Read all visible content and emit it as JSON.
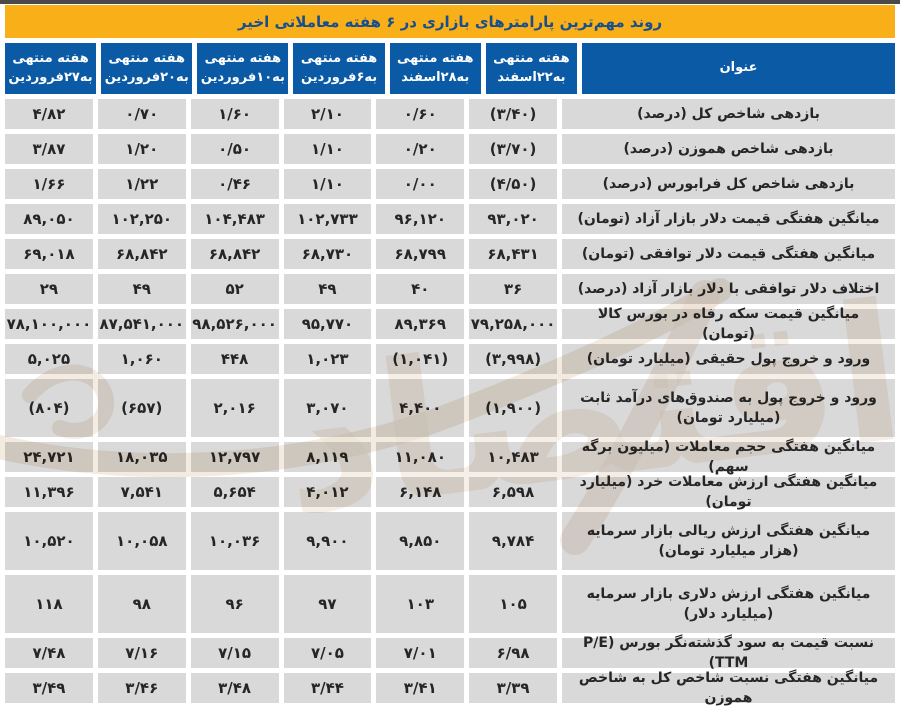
{
  "page_title": "روند مهم‌ترین پارامترهای بازاری در ۶ هفته معاملاتی اخیر",
  "colors": {
    "title_bar_bg": "#F9AF18",
    "title_bar_text": "#174F8E",
    "header_bg": "#0B5AA6",
    "header_text": "#FFFFFF",
    "cell_bg": "#D9D9D9",
    "cell_text": "#262626",
    "top_strip": "#4A4A4A",
    "watermark": "#DCC3A8"
  },
  "watermark": {
    "text": "اقتصاد"
  },
  "chart_data": {
    "type": "table",
    "title": "روند مهم‌ترین پارامترهای بازاری در ۶ هفته معاملاتی اخیر",
    "title_column": "عنوان",
    "layout": "RTL table; label column on the right, week columns ordered oldest-to-newest from right to left",
    "week_columns": [
      {
        "line1": "هفته منتهی",
        "line2": "به۲۲اسفند"
      },
      {
        "line1": "هفته منتهی",
        "line2": "به۲۸اسفند"
      },
      {
        "line1": "هفته منتهی",
        "line2": "به۶فروردین"
      },
      {
        "line1": "هفته منتهی",
        "line2": "به۱۰فروردین"
      },
      {
        "line1": "هفته منتهی",
        "line2": "به۲۰فروردین"
      },
      {
        "line1": "هفته منتهی",
        "line2": "به۲۷فروردین"
      }
    ],
    "rows": [
      {
        "label": "بازدهی شاخص کل (درصد)",
        "tall": false,
        "values": [
          "(۳/۴۰)",
          "۰/۶۰",
          "۲/۱۰",
          "۱/۶۰",
          "۰/۷۰",
          "۴/۸۲"
        ]
      },
      {
        "label": "بازدهی شاخص هموزن (درصد)",
        "tall": false,
        "values": [
          "(۳/۷۰)",
          "۰/۲۰",
          "۱/۱۰",
          "۰/۵۰",
          "۱/۲۰",
          "۳/۸۷"
        ]
      },
      {
        "label": "بازدهی شاخص کل فرابورس (درصد)",
        "tall": false,
        "values": [
          "(۴/۵۰)",
          "۰/۰۰",
          "۱/۱۰",
          "۰/۴۶",
          "۱/۲۲",
          "۱/۶۶"
        ]
      },
      {
        "label": "میانگین هفتگی قیمت دلار بازار آزاد (تومان)",
        "tall": false,
        "values": [
          "۹۳,۰۲۰",
          "۹۶,۱۲۰",
          "۱۰۲,۷۳۳",
          "۱۰۴,۴۸۳",
          "۱۰۲,۲۵۰",
          "۸۹,۰۵۰"
        ]
      },
      {
        "label": "میانگین هفتگی قیمت دلار توافقی (تومان)",
        "tall": false,
        "values": [
          "۶۸,۴۳۱",
          "۶۸,۷۹۹",
          "۶۸,۷۳۰",
          "۶۸,۸۴۲",
          "۶۸,۸۴۲",
          "۶۹,۰۱۸"
        ]
      },
      {
        "label": "اختلاف دلار توافقی با دلار بازار آزاد (درصد)",
        "tall": false,
        "values": [
          "۳۶",
          "۴۰",
          "۴۹",
          "۵۲",
          "۴۹",
          "۲۹"
        ]
      },
      {
        "label": "میانگین قیمت سکه رفاه در بورس کالا (تومان)",
        "tall": false,
        "values": [
          "۷۹,۲۵۸,۰۰۰",
          "۸۹,۳۶۹",
          "۹۵,۷۷۰",
          "۹۸,۵۲۶,۰۰۰",
          "۸۷,۵۴۱,۰۰۰",
          "۷۸,۱۰۰,۰۰۰"
        ]
      },
      {
        "label": "ورود و خروج پول حقیقی (میلیارد تومان)",
        "tall": false,
        "values": [
          "(۳,۹۹۸)",
          "(۱,۰۴۱)",
          "۱,۰۲۳",
          "۴۴۸",
          "۱,۰۶۰",
          "۵,۰۲۵"
        ]
      },
      {
        "label": "ورود و خروج پول به صندوق‌های درآمد ثابت (میلیارد تومان)",
        "tall": true,
        "values": [
          "(۱,۹۰۰)",
          "۴,۴۰۰",
          "۳,۰۷۰",
          "۲,۰۱۶",
          "(۶۵۷)",
          "(۸۰۴)"
        ]
      },
      {
        "label": "میانگین هفتگی حجم معاملات (میلیون برگه سهم)",
        "tall": false,
        "values": [
          "۱۰,۴۸۳",
          "۱۱,۰۸۰",
          "۸,۱۱۹",
          "۱۲,۷۹۷",
          "۱۸,۰۳۵",
          "۲۴,۷۲۱"
        ]
      },
      {
        "label": "میانگین هفتگی ارزش معاملات خرد (میلیارد تومان)",
        "tall": false,
        "values": [
          "۶,۵۹۸",
          "۶,۱۴۸",
          "۴,۰۱۲",
          "۵,۶۵۴",
          "۷,۵۴۱",
          "۱۱,۳۹۶"
        ]
      },
      {
        "label": "میانگین هفتگی ارزش ریالی بازار سرمایه (هزار میلیارد تومان)",
        "tall": true,
        "values": [
          "۹,۷۸۴",
          "۹,۸۵۰",
          "۹,۹۰۰",
          "۱۰,۰۳۶",
          "۱۰,۰۵۸",
          "۱۰,۵۲۰"
        ]
      },
      {
        "label": "میانگین هفتگی ارزش دلاری بازار سرمایه (میلیارد دلار)",
        "tall": true,
        "values": [
          "۱۰۵",
          "۱۰۳",
          "۹۷",
          "۹۶",
          "۹۸",
          "۱۱۸"
        ]
      },
      {
        "label": "نسبت قیمت به سود گذشته‌نگر بورس (P/E TTM)",
        "tall": false,
        "values": [
          "۶/۹۸",
          "۷/۰۱",
          "۷/۰۵",
          "۷/۱۵",
          "۷/۱۶",
          "۷/۴۸"
        ]
      },
      {
        "label": "میانگین هفتگی نسبت شاخص کل به شاخص هموزن",
        "tall": false,
        "values": [
          "۳/۳۹",
          "۳/۴۱",
          "۳/۴۴",
          "۳/۴۸",
          "۳/۴۶",
          "۳/۴۹"
        ]
      }
    ]
  }
}
